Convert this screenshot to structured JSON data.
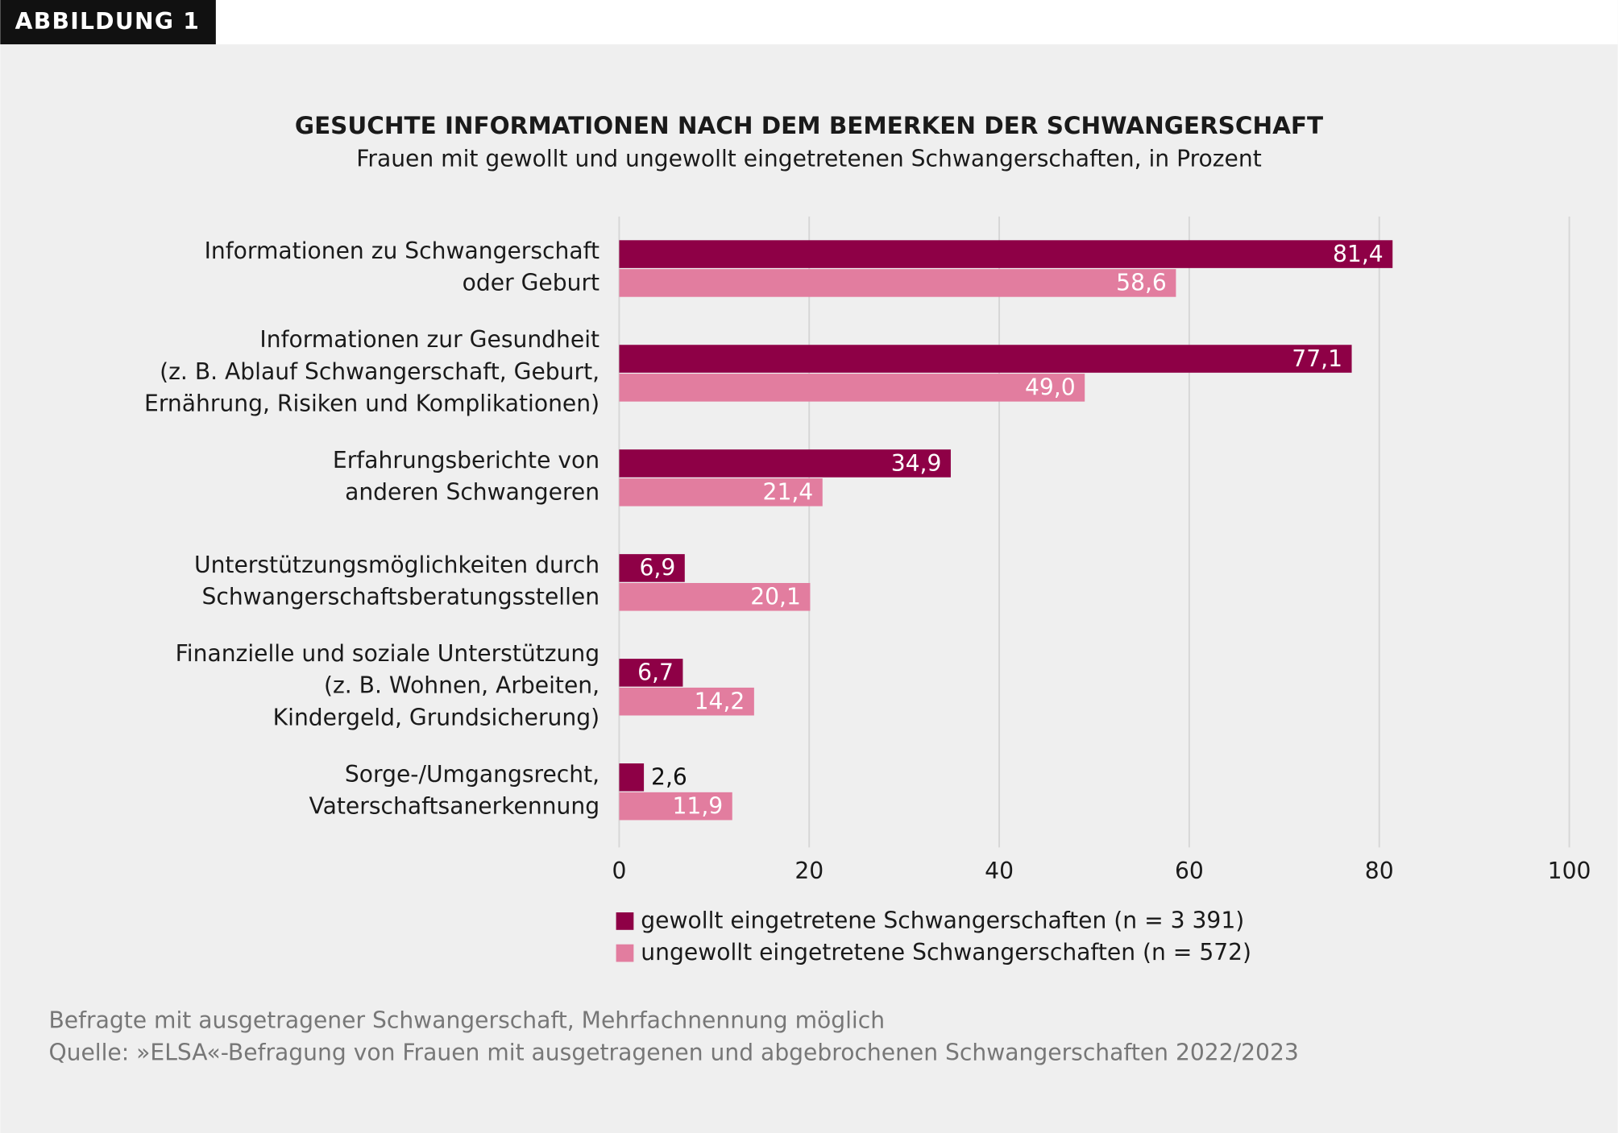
{
  "header": {
    "badge": "ABBILDUNG 1"
  },
  "chart_data": {
    "type": "bar",
    "orientation": "horizontal",
    "title": "GESUCHTE INFORMATIONEN NACH DEM BEMERKEN DER SCHWANGERSCHAFT",
    "subtitle": "Frauen mit gewollt und ungewollt eingetretenen Schwangerschaften, in Prozent",
    "categories": [
      [
        "Informationen zu Schwangerschaft",
        "oder Geburt"
      ],
      [
        "Informationen zur Gesundheit",
        "(z. B. Ablauf Schwangerschaft, Geburt,",
        "Ernährung, Risiken und Komplikationen)"
      ],
      [
        "Erfahrungsberichte von",
        "anderen Schwangeren"
      ],
      [
        "Unterstützungsmöglichkeiten durch",
        "Schwangerschaftsberatungsstellen"
      ],
      [
        "Finanzielle und soziale Unterstützung",
        "(z. B. Wohnen, Arbeiten,",
        "Kindergeld, Grundsicherung)"
      ],
      [
        "Sorge-/Umgangsrecht,",
        "Vaterschaftsanerkennung"
      ]
    ],
    "series": [
      {
        "name": "gewollt eingetretene Schwangerschaften (n = 3 391)",
        "color": "#8e0046",
        "values": [
          81.4,
          77.1,
          34.9,
          6.9,
          6.7,
          2.6
        ],
        "value_labels": [
          "81,4",
          "77,1",
          "34,9",
          "6,9",
          "6,7",
          "2,6"
        ]
      },
      {
        "name": "ungewollt eingetretene Schwangerschaften (n = 572)",
        "color": "#e27d9f",
        "values": [
          58.6,
          49.0,
          21.4,
          20.1,
          14.2,
          11.9
        ],
        "value_labels": [
          "58,6",
          "49,0",
          "21,4",
          "20,1",
          "14,2",
          "11,9"
        ]
      }
    ],
    "xlim": [
      0,
      100
    ],
    "xticks": [
      0,
      20,
      40,
      60,
      80,
      100
    ],
    "grid": true
  },
  "notes": [
    "Befragte mit ausgetragener Schwangerschaft, Mehrfachnennung möglich",
    "Quelle: »ELSA«-Befragung von Frauen mit ausgetragenen und abgebrochenen Schwangerschaften 2022/2023"
  ]
}
